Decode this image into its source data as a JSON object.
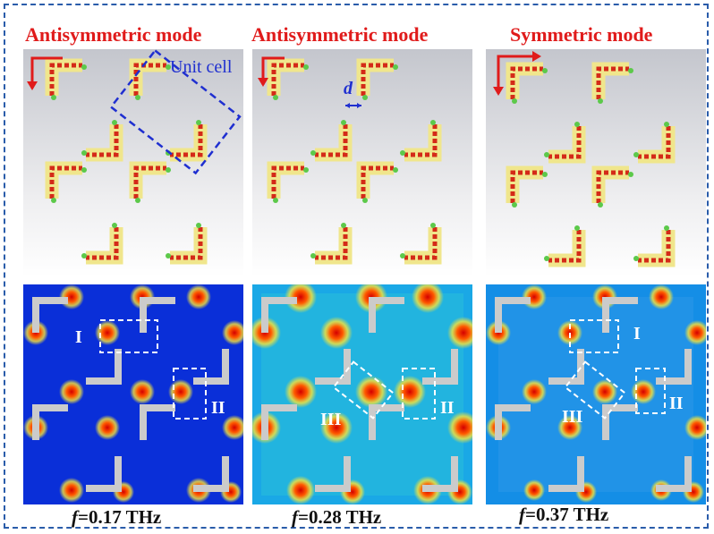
{
  "titles": {
    "left": "Antisymmetric mode",
    "middle": "Antisymmetric mode",
    "right": "Symmetric mode"
  },
  "annotations": {
    "unit_cell": "Unit cell",
    "gap": "d"
  },
  "frequencies": {
    "left": "0.17 THz",
    "middle": "0.28 THz",
    "right": "0.37 THz",
    "symbol": "f",
    "eq": "="
  },
  "region_labels": {
    "one": "I",
    "two": "II",
    "three": "III"
  },
  "colors": {
    "title": "#e01b1b",
    "frame": "#2a5caa",
    "annotation": "#1f2fd0"
  }
}
